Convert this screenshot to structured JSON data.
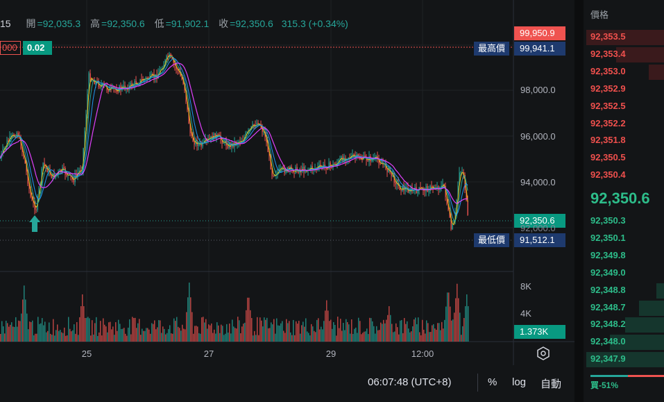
{
  "header": {
    "timeframe": "15",
    "open_label": "開",
    "open": "=92,035.3",
    "high_label": "高",
    "high": "=92,350.6",
    "low_label": "低",
    "low": "=91,902.1",
    "close_label": "收",
    "close": "=92,350.6",
    "change": "315.3 (+0.34%)"
  },
  "crosshair": {
    "left_value": "000",
    "left_badge": "0.02",
    "price": "99,950.9"
  },
  "markers": {
    "high_label": "最高價",
    "high_value": "99,941.1",
    "low_label": "最低價",
    "low_value": "91,512.1",
    "last_price": "92,350.6",
    "volume": "1.373K"
  },
  "y_axis": [
    "98,000.0",
    "96,000.0",
    "94,000.0",
    "92,000.0"
  ],
  "vol_axis": [
    "8K",
    "4K"
  ],
  "x_axis": [
    "25",
    "27",
    "29",
    "12:00"
  ],
  "colors": {
    "up": "#26a69a",
    "down": "#ef5350",
    "accent": "#089981",
    "ma1": "#e040fb",
    "ma2": "#f0c419",
    "ma3": "#2196f3"
  },
  "bottom_bar": {
    "time": "06:07:48 (UTC+8)",
    "percent": "%",
    "log": "log",
    "auto": "自動",
    "settings_icon": "gear-icon"
  },
  "order_book": {
    "header": "價格",
    "asks": [
      {
        "price": "92,353.5",
        "depth": 1.0
      },
      {
        "price": "92,353.4",
        "depth": 0.62
      },
      {
        "price": "92,353.0",
        "depth": 0.2
      },
      {
        "price": "92,352.9",
        "depth": 0.0
      },
      {
        "price": "92,352.5",
        "depth": 0.0
      },
      {
        "price": "92,352.2",
        "depth": 0.0
      },
      {
        "price": "92,351.8",
        "depth": 0.0
      },
      {
        "price": "92,350.5",
        "depth": 0.0
      },
      {
        "price": "92,350.4",
        "depth": 0.0
      }
    ],
    "last": "92,350.6",
    "bids": [
      {
        "price": "92,350.3",
        "depth": 0.0
      },
      {
        "price": "92,350.1",
        "depth": 0.0
      },
      {
        "price": "92,349.8",
        "depth": 0.0
      },
      {
        "price": "92,349.0",
        "depth": 0.0
      },
      {
        "price": "92,348.8",
        "depth": 0.1
      },
      {
        "price": "92,348.7",
        "depth": 0.32
      },
      {
        "price": "92,348.2",
        "depth": 0.5
      },
      {
        "price": "92,348.0",
        "depth": 0.7
      },
      {
        "price": "92,347.9",
        "depth": 1.0
      }
    ],
    "ratio": "買-51%"
  }
}
